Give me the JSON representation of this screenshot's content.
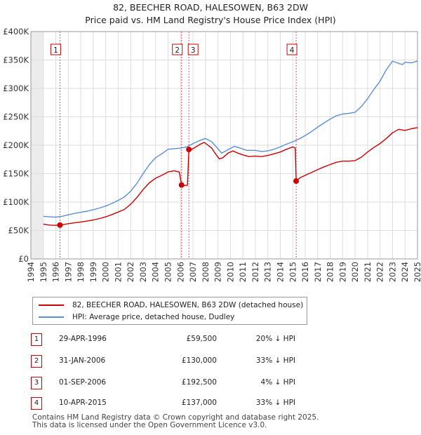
{
  "title_line1": "82, BEECHER ROAD, HALESOWEN, B63 2DW",
  "title_line2": "Price paid vs. HM Land Registry's House Price Index (HPI)",
  "chart_data": {
    "type": "line",
    "title": "82, BEECHER ROAD, HALESOWEN, B63 2DW — Price paid vs. HM Land Registry's House Price Index (HPI)",
    "xlim": [
      1994,
      2025
    ],
    "ylim": [
      0,
      400000
    ],
    "x_ticks": [
      "1994",
      "1995",
      "1996",
      "1997",
      "1998",
      "1999",
      "2000",
      "2001",
      "2002",
      "2003",
      "2004",
      "2005",
      "2006",
      "2007",
      "2008",
      "2009",
      "2010",
      "2011",
      "2012",
      "2013",
      "2014",
      "2015",
      "2016",
      "2017",
      "2018",
      "2019",
      "2020",
      "2021",
      "2022",
      "2023",
      "2024",
      "2025"
    ],
    "y_ticks": [
      {
        "value": 0,
        "label": "£0"
      },
      {
        "value": 50000,
        "label": "£50K"
      },
      {
        "value": 100000,
        "label": "£100K"
      },
      {
        "value": 150000,
        "label": "£150K"
      },
      {
        "value": 200000,
        "label": "£200K"
      },
      {
        "value": 250000,
        "label": "£250K"
      },
      {
        "value": 300000,
        "label": "£300K"
      },
      {
        "value": 350000,
        "label": "£350K"
      },
      {
        "value": 400000,
        "label": "£400K"
      }
    ],
    "grid": true,
    "series": [
      {
        "name": "82, BEECHER ROAD, HALESOWEN, B63 2DW (detached house)",
        "color": "#cc0000",
        "points": [
          [
            1995.0,
            61000
          ],
          [
            1995.5,
            59500
          ],
          [
            1996.0,
            59000
          ],
          [
            1996.33,
            59500
          ],
          [
            1996.5,
            60000
          ],
          [
            1997.0,
            62000
          ],
          [
            1997.5,
            63500
          ],
          [
            1998.0,
            65000
          ],
          [
            1998.5,
            66500
          ],
          [
            1999.0,
            68500
          ],
          [
            1999.5,
            71000
          ],
          [
            2000.0,
            74000
          ],
          [
            2000.5,
            78000
          ],
          [
            2001.0,
            82500
          ],
          [
            2001.5,
            87000
          ],
          [
            2002.0,
            96000
          ],
          [
            2002.5,
            108000
          ],
          [
            2003.0,
            122000
          ],
          [
            2003.5,
            134000
          ],
          [
            2004.0,
            142000
          ],
          [
            2004.5,
            147000
          ],
          [
            2005.0,
            153000
          ],
          [
            2005.5,
            155000
          ],
          [
            2005.9,
            153000
          ],
          [
            2006.08,
            130000
          ],
          [
            2006.3,
            129000
          ],
          [
            2006.55,
            129500
          ],
          [
            2006.67,
            192500
          ],
          [
            2006.85,
            192000
          ],
          [
            2007.0,
            194000
          ],
          [
            2007.3,
            198000
          ],
          [
            2007.6,
            202000
          ],
          [
            2007.9,
            205000
          ],
          [
            2008.2,
            200000
          ],
          [
            2008.5,
            195000
          ],
          [
            2008.8,
            185000
          ],
          [
            2009.1,
            176000
          ],
          [
            2009.4,
            178000
          ],
          [
            2009.8,
            186000
          ],
          [
            2010.2,
            190000
          ],
          [
            2010.6,
            186000
          ],
          [
            2011.0,
            183000
          ],
          [
            2011.5,
            180000
          ],
          [
            2012.0,
            181000
          ],
          [
            2012.5,
            180000
          ],
          [
            2013.0,
            182000
          ],
          [
            2013.5,
            185000
          ],
          [
            2014.0,
            188000
          ],
          [
            2014.5,
            193000
          ],
          [
            2015.0,
            197000
          ],
          [
            2015.2,
            195000
          ],
          [
            2015.27,
            137000
          ],
          [
            2015.6,
            143000
          ],
          [
            2016.0,
            147000
          ],
          [
            2016.5,
            152000
          ],
          [
            2017.0,
            157000
          ],
          [
            2017.5,
            162000
          ],
          [
            2018.0,
            166000
          ],
          [
            2018.5,
            170000
          ],
          [
            2019.0,
            172000
          ],
          [
            2019.5,
            172000
          ],
          [
            2020.0,
            173000
          ],
          [
            2020.5,
            179000
          ],
          [
            2021.0,
            188000
          ],
          [
            2021.5,
            196000
          ],
          [
            2022.0,
            203000
          ],
          [
            2022.5,
            212000
          ],
          [
            2023.0,
            222000
          ],
          [
            2023.5,
            228000
          ],
          [
            2024.0,
            226000
          ],
          [
            2024.5,
            229000
          ],
          [
            2025.0,
            231000
          ]
        ]
      },
      {
        "name": "HPI: Average price, detached house, Dudley",
        "color": "#5b8fd4",
        "points": [
          [
            1995.0,
            75000
          ],
          [
            1995.5,
            74000
          ],
          [
            1996.0,
            73500
          ],
          [
            1996.5,
            75000
          ],
          [
            1997.0,
            77500
          ],
          [
            1997.5,
            80000
          ],
          [
            1998.0,
            82000
          ],
          [
            1998.5,
            84000
          ],
          [
            1999.0,
            86500
          ],
          [
            1999.5,
            89500
          ],
          [
            2000.0,
            93000
          ],
          [
            2000.5,
            97500
          ],
          [
            2001.0,
            103000
          ],
          [
            2001.5,
            109000
          ],
          [
            2002.0,
            119000
          ],
          [
            2002.5,
            133000
          ],
          [
            2003.0,
            150000
          ],
          [
            2003.5,
            166000
          ],
          [
            2004.0,
            178000
          ],
          [
            2004.5,
            185000
          ],
          [
            2005.0,
            193000
          ],
          [
            2005.5,
            194000
          ],
          [
            2006.0,
            195000
          ],
          [
            2006.5,
            197000
          ],
          [
            2007.0,
            203000
          ],
          [
            2007.5,
            208000
          ],
          [
            2008.0,
            212000
          ],
          [
            2008.5,
            206000
          ],
          [
            2009.0,
            194000
          ],
          [
            2009.3,
            186000
          ],
          [
            2009.8,
            192000
          ],
          [
            2010.3,
            198000
          ],
          [
            2010.8,
            195000
          ],
          [
            2011.3,
            191000
          ],
          [
            2012.0,
            191000
          ],
          [
            2012.5,
            189000
          ],
          [
            2013.0,
            190000
          ],
          [
            2013.5,
            193000
          ],
          [
            2014.0,
            197000
          ],
          [
            2014.5,
            202000
          ],
          [
            2015.0,
            206000
          ],
          [
            2015.5,
            211000
          ],
          [
            2016.0,
            217000
          ],
          [
            2016.5,
            224000
          ],
          [
            2017.0,
            232000
          ],
          [
            2017.5,
            239000
          ],
          [
            2018.0,
            246000
          ],
          [
            2018.5,
            252000
          ],
          [
            2019.0,
            255000
          ],
          [
            2019.5,
            256000
          ],
          [
            2020.0,
            258000
          ],
          [
            2020.5,
            268000
          ],
          [
            2021.0,
            282000
          ],
          [
            2021.5,
            298000
          ],
          [
            2022.0,
            313000
          ],
          [
            2022.5,
            333000
          ],
          [
            2023.0,
            348000
          ],
          [
            2023.5,
            344000
          ],
          [
            2023.8,
            342000
          ],
          [
            2024.0,
            346000
          ],
          [
            2024.5,
            345000
          ],
          [
            2025.0,
            348000
          ]
        ]
      }
    ],
    "transactions": [
      {
        "label": "1",
        "date": "29-APR-1996",
        "x": 1996.33,
        "price": 59500,
        "price_label": "£59,500",
        "hpi": "20% ↓ HPI"
      },
      {
        "label": "2",
        "date": "31-JAN-2006",
        "x": 2006.08,
        "price": 130000,
        "price_label": "£130,000",
        "hpi": "33% ↓ HPI"
      },
      {
        "label": "3",
        "date": "01-SEP-2006",
        "x": 2006.67,
        "price": 192500,
        "price_label": "£192,500",
        "hpi": "4% ↓ HPI"
      },
      {
        "label": "4",
        "date": "10-APR-2015",
        "x": 2015.27,
        "price": 137000,
        "price_label": "£137,000",
        "hpi": "33% ↓ HPI"
      }
    ]
  },
  "legend": {
    "property_label": "82, BEECHER ROAD, HALESOWEN, B63 2DW (detached house)",
    "hpi_label": "HPI: Average price, detached house, Dudley"
  },
  "footer_line1": "Contains HM Land Registry data © Crown copyright and database right 2025.",
  "footer_line2": "This data is licensed under the Open Government Licence v3.0."
}
